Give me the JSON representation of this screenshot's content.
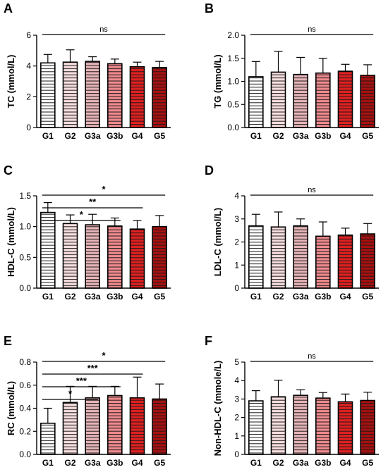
{
  "figure": {
    "group_colors": {
      "G1": "#ffffff",
      "G2": "#f7dede",
      "G3a": "#e6b4b8",
      "G3b": "#ef8a8e",
      "G4": "#e02020",
      "G5": "#a81010"
    },
    "stripe_color": "#1a1a1a"
  },
  "chart_data": [
    {
      "type": "bar",
      "panel": "A",
      "ylabel": "TC (mmol/L)",
      "categories": [
        "G1",
        "G2",
        "G3a",
        "G3b",
        "G4",
        "G5"
      ],
      "values": [
        4.2,
        4.25,
        4.3,
        4.15,
        3.95,
        3.9
      ],
      "errors": [
        0.55,
        0.8,
        0.3,
        0.3,
        0.3,
        0.4
      ],
      "ylim": [
        0,
        6
      ],
      "yticks": [
        0,
        2,
        4,
        6
      ],
      "yticklabels": [
        "0",
        "2",
        "4",
        "6"
      ],
      "significance": [
        {
          "from": "G1",
          "to": "G5",
          "label": "ns"
        }
      ]
    },
    {
      "type": "bar",
      "panel": "B",
      "ylabel": "TG (mmol/L)",
      "categories": [
        "G1",
        "G2",
        "G3a",
        "G3b",
        "G4",
        "G5"
      ],
      "values": [
        1.1,
        1.2,
        1.15,
        1.18,
        1.22,
        1.13
      ],
      "errors": [
        0.33,
        0.45,
        0.37,
        0.32,
        0.15,
        0.23
      ],
      "ylim": [
        0,
        2
      ],
      "yticks": [
        0,
        0.5,
        1,
        1.5,
        2
      ],
      "yticklabels": [
        "0.0",
        "0.5",
        "1.0",
        "1.5",
        "2.0"
      ],
      "significance": [
        {
          "from": "G1",
          "to": "G5",
          "label": "ns"
        }
      ]
    },
    {
      "type": "bar",
      "panel": "C",
      "ylabel": "HDL-C (mmol/L)",
      "categories": [
        "G1",
        "G2",
        "G3a",
        "G3b",
        "G4",
        "G5"
      ],
      "values": [
        1.23,
        1.05,
        1.03,
        1.01,
        0.96,
        1.0
      ],
      "errors": [
        0.16,
        0.14,
        0.17,
        0.13,
        0.14,
        0.18
      ],
      "ylim": [
        0,
        1.5
      ],
      "yticks": [
        0,
        0.5,
        1,
        1.5
      ],
      "yticklabels": [
        "0.0",
        "0.5",
        "1.0",
        "1.5"
      ],
      "significance": [
        {
          "from": "G1",
          "to": "G5",
          "label": "*"
        },
        {
          "from": "G1",
          "to": "G4",
          "label": "**"
        },
        {
          "from": "G1",
          "to": "G3b",
          "label": "*"
        }
      ]
    },
    {
      "type": "bar",
      "panel": "D",
      "ylabel": "LDL-C (mmol/L)",
      "categories": [
        "G1",
        "G2",
        "G3a",
        "G3b",
        "G4",
        "G5"
      ],
      "values": [
        2.7,
        2.65,
        2.7,
        2.25,
        2.3,
        2.35
      ],
      "errors": [
        0.5,
        0.65,
        0.3,
        0.62,
        0.3,
        0.45
      ],
      "ylim": [
        0,
        4
      ],
      "yticks": [
        0,
        1,
        2,
        3,
        4
      ],
      "yticklabels": [
        "0",
        "1",
        "2",
        "3",
        "4"
      ],
      "significance": [
        {
          "from": "G1",
          "to": "G5",
          "label": "ns"
        }
      ]
    },
    {
      "type": "bar",
      "panel": "E",
      "ylabel": "RC (mmol/L)",
      "categories": [
        "G1",
        "G2",
        "G3a",
        "G3b",
        "G4",
        "G5"
      ],
      "values": [
        0.27,
        0.45,
        0.49,
        0.51,
        0.49,
        0.48
      ],
      "errors": [
        0.13,
        0.14,
        0.1,
        0.08,
        0.18,
        0.13
      ],
      "ylim": [
        0,
        0.8
      ],
      "yticks": [
        0,
        0.2,
        0.4,
        0.6,
        0.8
      ],
      "yticklabels": [
        "0.0",
        "0.2",
        "0.4",
        "0.6",
        "0.8"
      ],
      "significance": [
        {
          "from": "G1",
          "to": "G5",
          "label": "*"
        },
        {
          "from": "G1",
          "to": "G4",
          "label": "***"
        },
        {
          "from": "G1",
          "to": "G3b",
          "label": "***"
        },
        {
          "from": "G1",
          "to": "G3a",
          "label": "*"
        }
      ]
    },
    {
      "type": "bar",
      "panel": "F",
      "ylabel": "Non-HDL-C (mmole/L)",
      "categories": [
        "G1",
        "G2",
        "G3a",
        "G3b",
        "G4",
        "G5"
      ],
      "values": [
        2.9,
        3.12,
        3.2,
        3.05,
        2.85,
        2.92
      ],
      "errors": [
        0.55,
        0.9,
        0.3,
        0.3,
        0.42,
        0.45
      ],
      "ylim": [
        0,
        5
      ],
      "yticks": [
        0,
        1,
        2,
        3,
        4,
        5
      ],
      "yticklabels": [
        "0",
        "1",
        "2",
        "3",
        "4",
        "5"
      ],
      "significance": [
        {
          "from": "G1",
          "to": "G5",
          "label": "ns"
        }
      ]
    }
  ]
}
